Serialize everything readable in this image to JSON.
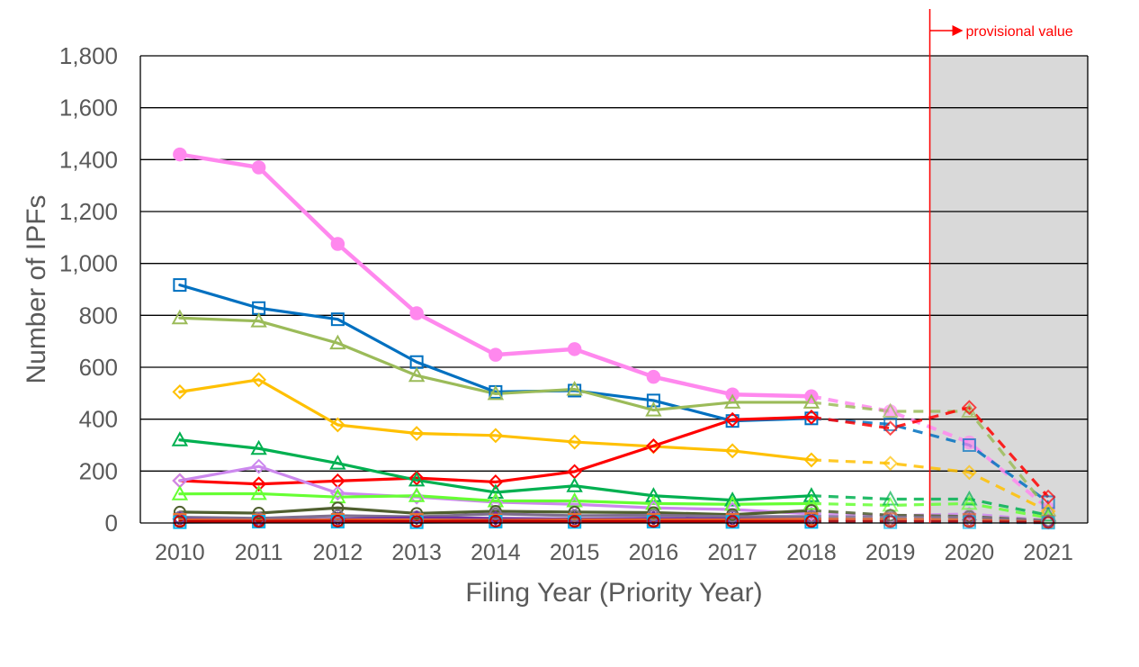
{
  "chart_data": {
    "type": "line",
    "xlabel": "Filing Year (Priority Year)",
    "ylabel": "Number of IPFs",
    "x": [
      2010,
      2011,
      2012,
      2013,
      2014,
      2015,
      2016,
      2017,
      2018,
      2019,
      2020,
      2021
    ],
    "ylim": [
      0,
      1800
    ],
    "yticks": [
      "0",
      "200",
      "400",
      "600",
      "800",
      "1,000",
      "1,200",
      "1,400",
      "1,600",
      "1,800"
    ],
    "grid": "horizontal",
    "solid_through": 2018,
    "dashed_from": 2018,
    "provisional": {
      "label": "provisional value",
      "boundary_after": 2019,
      "shaded_from": 2019.5,
      "shaded_to": 2021.5,
      "line_color": "#ff0000",
      "shade_color": "#d9d9d9"
    },
    "series": [
      {
        "color": "#ff88ee",
        "marker": "circle-filled",
        "values": [
          1420,
          1370,
          1075,
          808,
          648,
          670,
          563,
          495,
          488,
          430,
          310,
          55
        ]
      },
      {
        "color": "#0070c0",
        "marker": "square",
        "values": [
          917,
          828,
          785,
          620,
          505,
          510,
          472,
          393,
          403,
          380,
          300,
          80
        ]
      },
      {
        "color": "#9bbb59",
        "marker": "triangle",
        "values": [
          790,
          778,
          693,
          568,
          498,
          515,
          435,
          465,
          465,
          430,
          430,
          50
        ]
      },
      {
        "color": "#ffc000",
        "marker": "diamond",
        "values": [
          505,
          552,
          378,
          345,
          337,
          312,
          295,
          278,
          243,
          230,
          195,
          45
        ]
      },
      {
        "color": "#ff0000",
        "marker": "diamond",
        "values": [
          163,
          150,
          162,
          173,
          158,
          198,
          297,
          398,
          408,
          365,
          445,
          100
        ]
      },
      {
        "color": "#00b050",
        "marker": "triangle",
        "values": [
          320,
          287,
          230,
          165,
          118,
          143,
          105,
          88,
          105,
          92,
          92,
          30
        ]
      },
      {
        "color": "#cc88ee",
        "marker": "diamond",
        "values": [
          163,
          218,
          115,
          100,
          80,
          72,
          58,
          52,
          35,
          28,
          35,
          10
        ]
      },
      {
        "color": "#66ff33",
        "marker": "triangle",
        "values": [
          112,
          113,
          100,
          105,
          85,
          85,
          75,
          72,
          75,
          68,
          75,
          20
        ]
      },
      {
        "color": "#4f5f2f",
        "marker": "circle",
        "values": [
          42,
          38,
          58,
          37,
          45,
          42,
          40,
          32,
          48,
          30,
          25,
          8
        ]
      },
      {
        "color": "#7f6f8f",
        "marker": "circle",
        "values": [
          22,
          18,
          28,
          24,
          35,
          28,
          30,
          25,
          25,
          22,
          22,
          6
        ]
      },
      {
        "color": "#7030a0",
        "marker": "diamond",
        "values": [
          15,
          10,
          15,
          20,
          18,
          15,
          18,
          15,
          15,
          12,
          12,
          4
        ]
      },
      {
        "color": "#e97132",
        "marker": "square",
        "values": [
          12,
          10,
          12,
          12,
          10,
          12,
          12,
          12,
          15,
          14,
          12,
          4
        ]
      },
      {
        "color": "#00b0f0",
        "marker": "square",
        "values": [
          3,
          5,
          5,
          3,
          5,
          4,
          5,
          4,
          4,
          3,
          3,
          1
        ]
      },
      {
        "color": "#c00000",
        "marker": "circle",
        "values": [
          6,
          6,
          7,
          6,
          7,
          6,
          6,
          6,
          6,
          5,
          5,
          2
        ]
      }
    ]
  }
}
